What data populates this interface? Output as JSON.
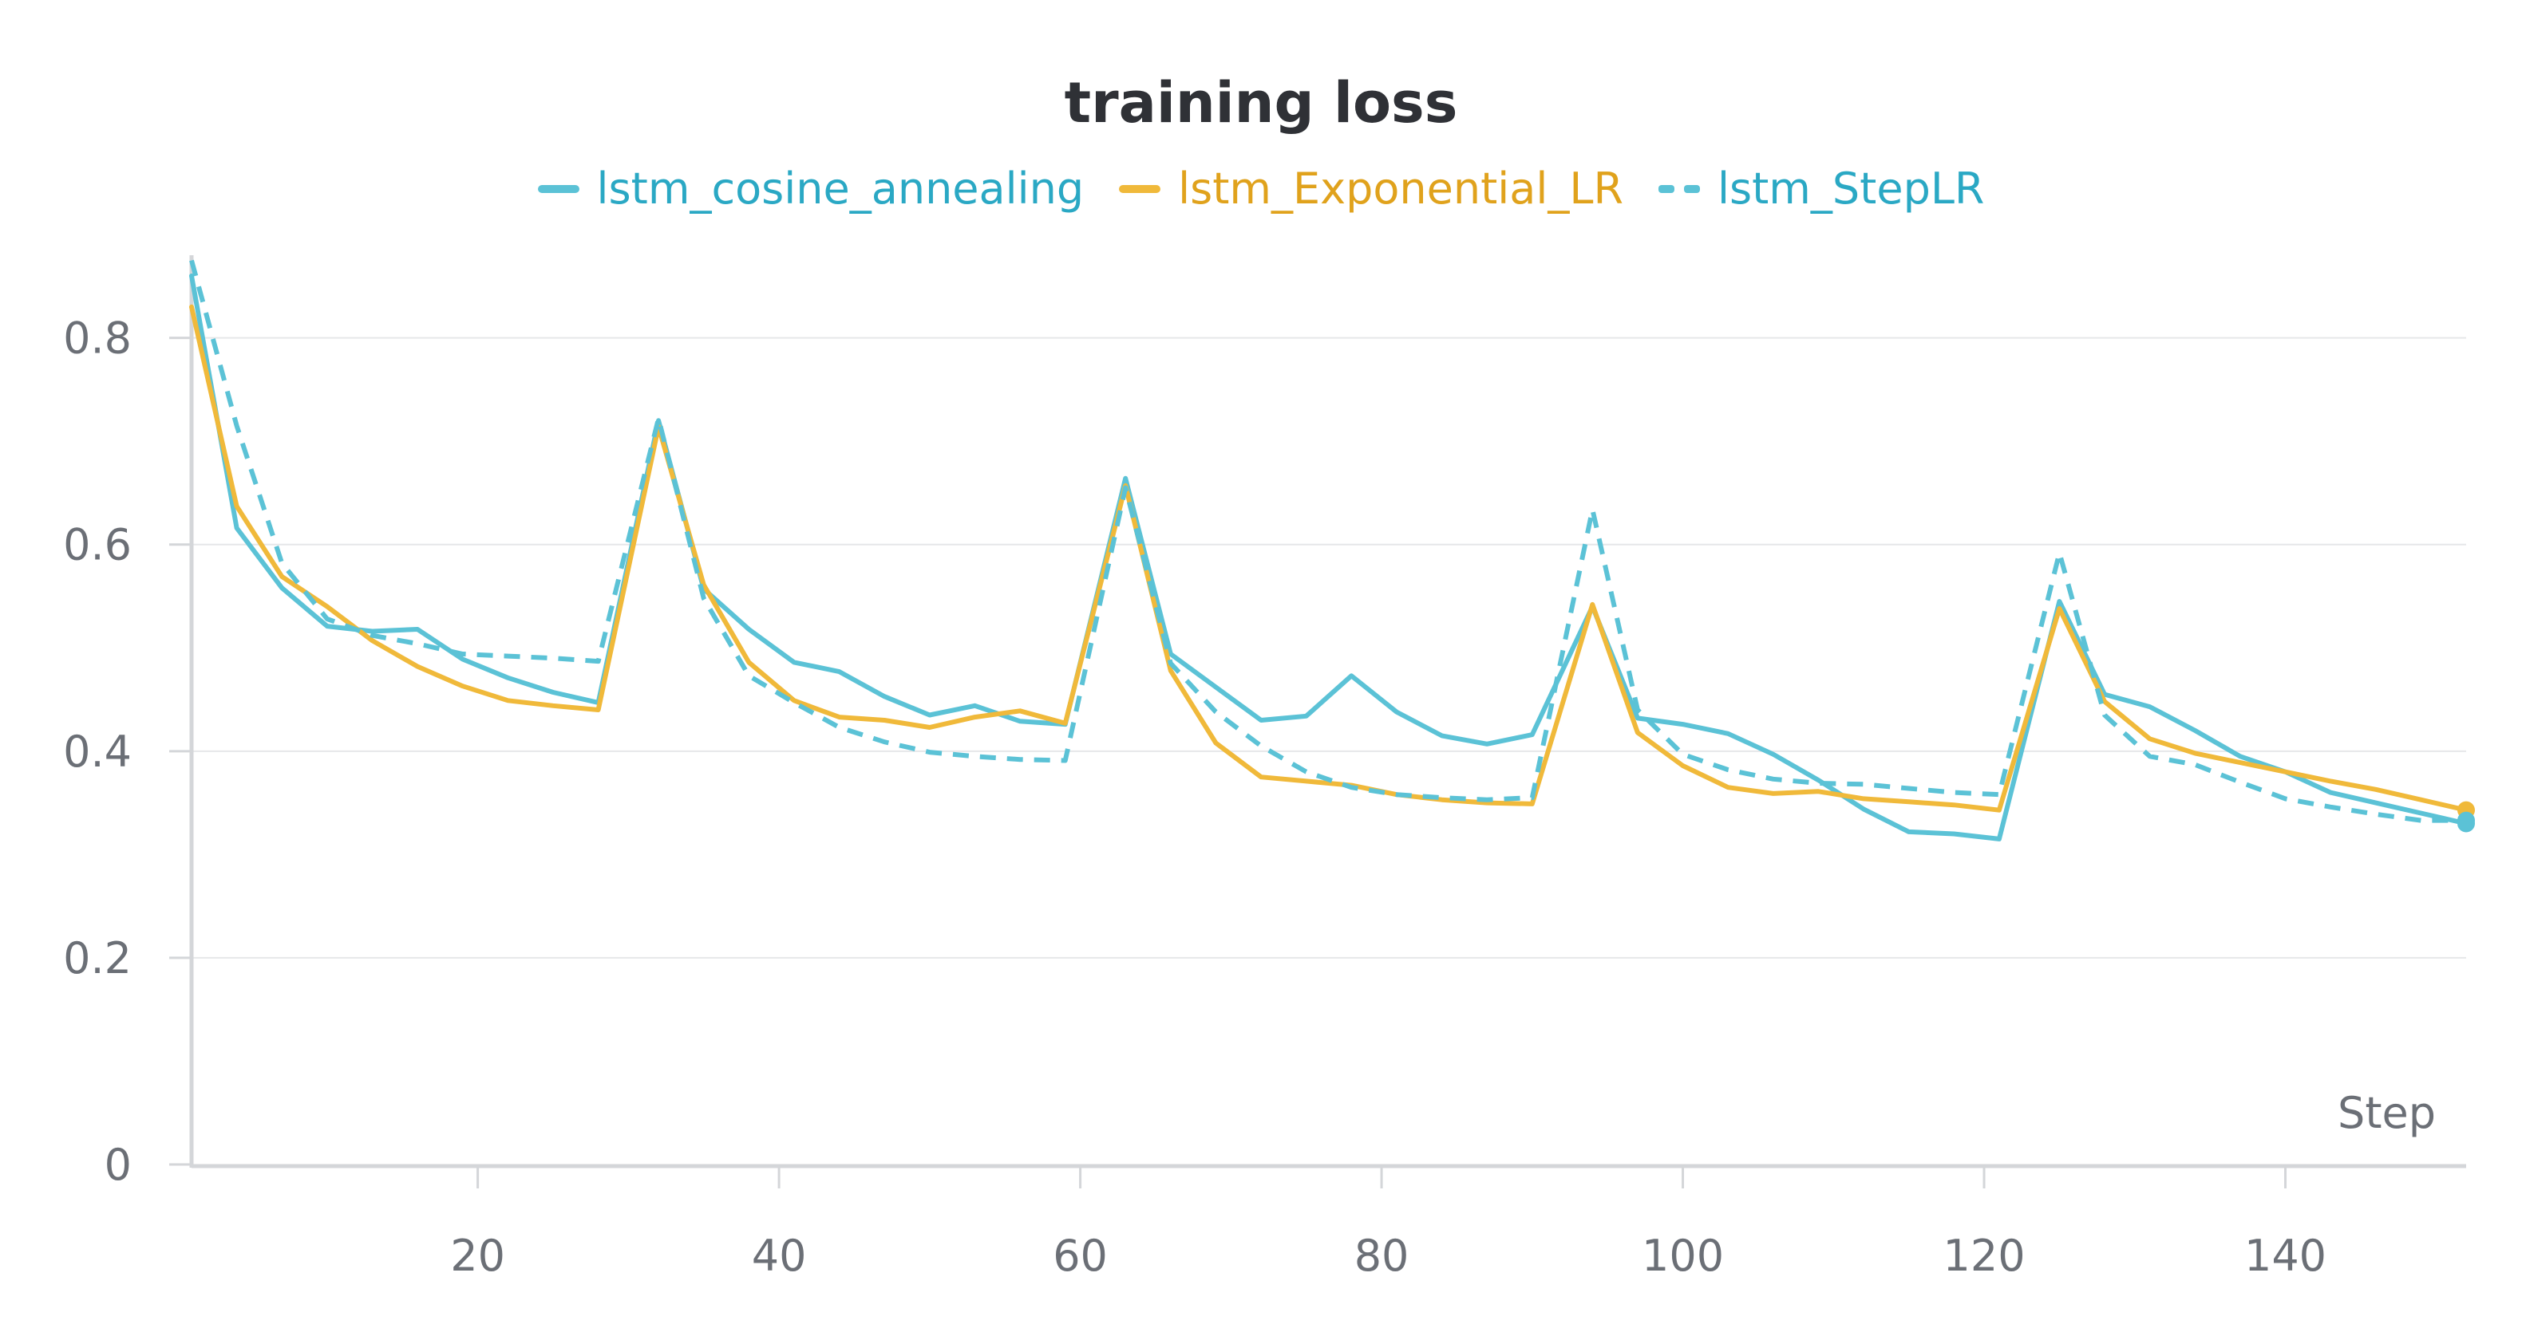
{
  "chart_data": {
    "type": "line",
    "title": "training loss",
    "xlabel": "Step",
    "ylabel": "",
    "xlim": [
      1,
      152
    ],
    "ylim": [
      0,
      0.88
    ],
    "xticks": [
      20,
      40,
      60,
      80,
      100,
      120,
      140
    ],
    "yticks": [
      0,
      0.2,
      0.4,
      0.6,
      0.8
    ],
    "ytick_labels": [
      "0",
      "0.2",
      "0.4",
      "0.6",
      "0.8"
    ],
    "grid": true,
    "legend_position": "top-center",
    "series": [
      {
        "name": "lstm_cosine_annealing",
        "color": "#5bc2d6",
        "dash": false,
        "x": [
          1,
          4,
          7,
          10,
          13,
          16,
          19,
          22,
          25,
          28,
          32,
          35,
          38,
          41,
          44,
          47,
          50,
          53,
          56,
          59,
          63,
          66,
          69,
          72,
          75,
          78,
          81,
          84,
          87,
          90,
          94,
          97,
          100,
          103,
          106,
          109,
          112,
          115,
          118,
          121,
          125,
          128,
          131,
          134,
          137,
          140,
          143,
          146,
          149,
          152
        ],
        "y": [
          0.86,
          0.616,
          0.558,
          0.521,
          0.516,
          0.518,
          0.489,
          0.471,
          0.457,
          0.447,
          0.72,
          0.557,
          0.518,
          0.486,
          0.477,
          0.453,
          0.435,
          0.444,
          0.429,
          0.426,
          0.664,
          0.494,
          0.462,
          0.43,
          0.434,
          0.473,
          0.438,
          0.415,
          0.407,
          0.416,
          0.54,
          0.432,
          0.426,
          0.417,
          0.397,
          0.372,
          0.344,
          0.322,
          0.32,
          0.315,
          0.545,
          0.455,
          0.443,
          0.42,
          0.395,
          0.38,
          0.36,
          0.35,
          0.34,
          0.33
        ]
      },
      {
        "name": "lstm_Exponential_LR",
        "color": "#f0b93a",
        "dash": false,
        "x": [
          1,
          4,
          7,
          10,
          13,
          16,
          19,
          22,
          25,
          28,
          32,
          35,
          38,
          41,
          44,
          47,
          50,
          53,
          56,
          59,
          63,
          66,
          69,
          72,
          75,
          78,
          81,
          84,
          87,
          90,
          94,
          97,
          100,
          103,
          106,
          109,
          112,
          115,
          118,
          121,
          125,
          128,
          131,
          134,
          137,
          140,
          143,
          146,
          149,
          152
        ],
        "y": [
          0.83,
          0.637,
          0.569,
          0.54,
          0.507,
          0.482,
          0.463,
          0.449,
          0.444,
          0.44,
          0.714,
          0.561,
          0.486,
          0.449,
          0.433,
          0.43,
          0.423,
          0.433,
          0.439,
          0.427,
          0.657,
          0.478,
          0.408,
          0.375,
          0.371,
          0.367,
          0.358,
          0.353,
          0.35,
          0.349,
          0.542,
          0.418,
          0.386,
          0.365,
          0.359,
          0.361,
          0.354,
          0.351,
          0.348,
          0.343,
          0.538,
          0.448,
          0.412,
          0.398,
          0.389,
          0.38,
          0.371,
          0.363,
          0.353,
          0.343
        ]
      },
      {
        "name": "lstm_StepLR",
        "color": "#5bc2d6",
        "dash": true,
        "x": [
          1,
          4,
          7,
          10,
          13,
          16,
          19,
          22,
          25,
          28,
          32,
          35,
          38,
          41,
          44,
          47,
          50,
          53,
          56,
          59,
          63,
          66,
          69,
          72,
          75,
          78,
          81,
          84,
          87,
          90,
          94,
          97,
          100,
          103,
          106,
          109,
          112,
          115,
          118,
          121,
          125,
          128,
          131,
          134,
          137,
          140,
          143,
          146,
          149,
          152
        ],
        "y": [
          0.875,
          0.715,
          0.582,
          0.528,
          0.512,
          0.504,
          0.494,
          0.492,
          0.49,
          0.487,
          0.722,
          0.548,
          0.473,
          0.447,
          0.423,
          0.409,
          0.399,
          0.395,
          0.392,
          0.391,
          0.655,
          0.485,
          0.438,
          0.405,
          0.38,
          0.365,
          0.358,
          0.355,
          0.353,
          0.355,
          0.634,
          0.44,
          0.397,
          0.382,
          0.373,
          0.369,
          0.368,
          0.364,
          0.36,
          0.358,
          0.592,
          0.435,
          0.395,
          0.387,
          0.37,
          0.354,
          0.346,
          0.339,
          0.333,
          0.333
        ]
      }
    ]
  }
}
